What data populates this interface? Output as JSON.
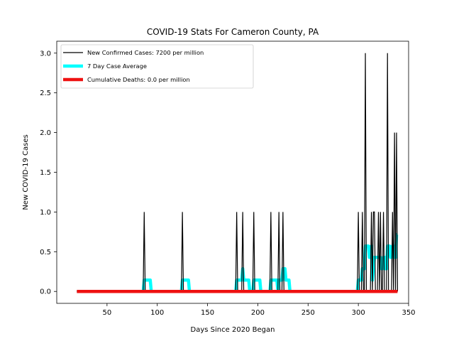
{
  "chart_data": {
    "type": "line",
    "title": "COVID-19 Stats For Cameron County, PA",
    "xlabel": "Days Since 2020 Began",
    "ylabel": "New COVID-19 Cases",
    "xlim": [
      0,
      350
    ],
    "ylim": [
      -0.15,
      3.15
    ],
    "xticks": [
      50,
      100,
      150,
      200,
      250,
      300,
      350
    ],
    "yticks": [
      0.0,
      0.5,
      1.0,
      1.5,
      2.0,
      2.5,
      3.0
    ],
    "ytick_labels": [
      "0.0",
      "0.5",
      "1.0",
      "1.5",
      "2.0",
      "2.5",
      "3.0"
    ],
    "grid": false,
    "legend_position": "upper-left",
    "day_range": [
      20,
      339
    ],
    "series": [
      {
        "name": "New Confirmed Cases: 7200 per million",
        "color": "#000000",
        "kind": "daily",
        "events": [
          {
            "day": 87,
            "value": 1
          },
          {
            "day": 125,
            "value": 1
          },
          {
            "day": 179,
            "value": 1
          },
          {
            "day": 185,
            "value": 1
          },
          {
            "day": 196,
            "value": 1
          },
          {
            "day": 213,
            "value": 1
          },
          {
            "day": 221,
            "value": 1
          },
          {
            "day": 225,
            "value": 1
          },
          {
            "day": 300,
            "value": 1
          },
          {
            "day": 304,
            "value": 1
          },
          {
            "day": 307,
            "value": 3
          },
          {
            "day": 313,
            "value": 1
          },
          {
            "day": 315,
            "value": 1
          },
          {
            "day": 316,
            "value": 1
          },
          {
            "day": 320,
            "value": 1
          },
          {
            "day": 322,
            "value": 1
          },
          {
            "day": 325,
            "value": 1
          },
          {
            "day": 329,
            "value": 3
          },
          {
            "day": 334,
            "value": 1
          },
          {
            "day": 336,
            "value": 2
          },
          {
            "day": 338,
            "value": 2
          }
        ]
      },
      {
        "name": "7 Day Case Average",
        "color": "#00ffff",
        "kind": "rolling_average",
        "window": 7
      },
      {
        "name": "Cumulative Deaths: 0.0 per million",
        "color": "#ee1111",
        "kind": "constant",
        "value": 0
      }
    ]
  }
}
